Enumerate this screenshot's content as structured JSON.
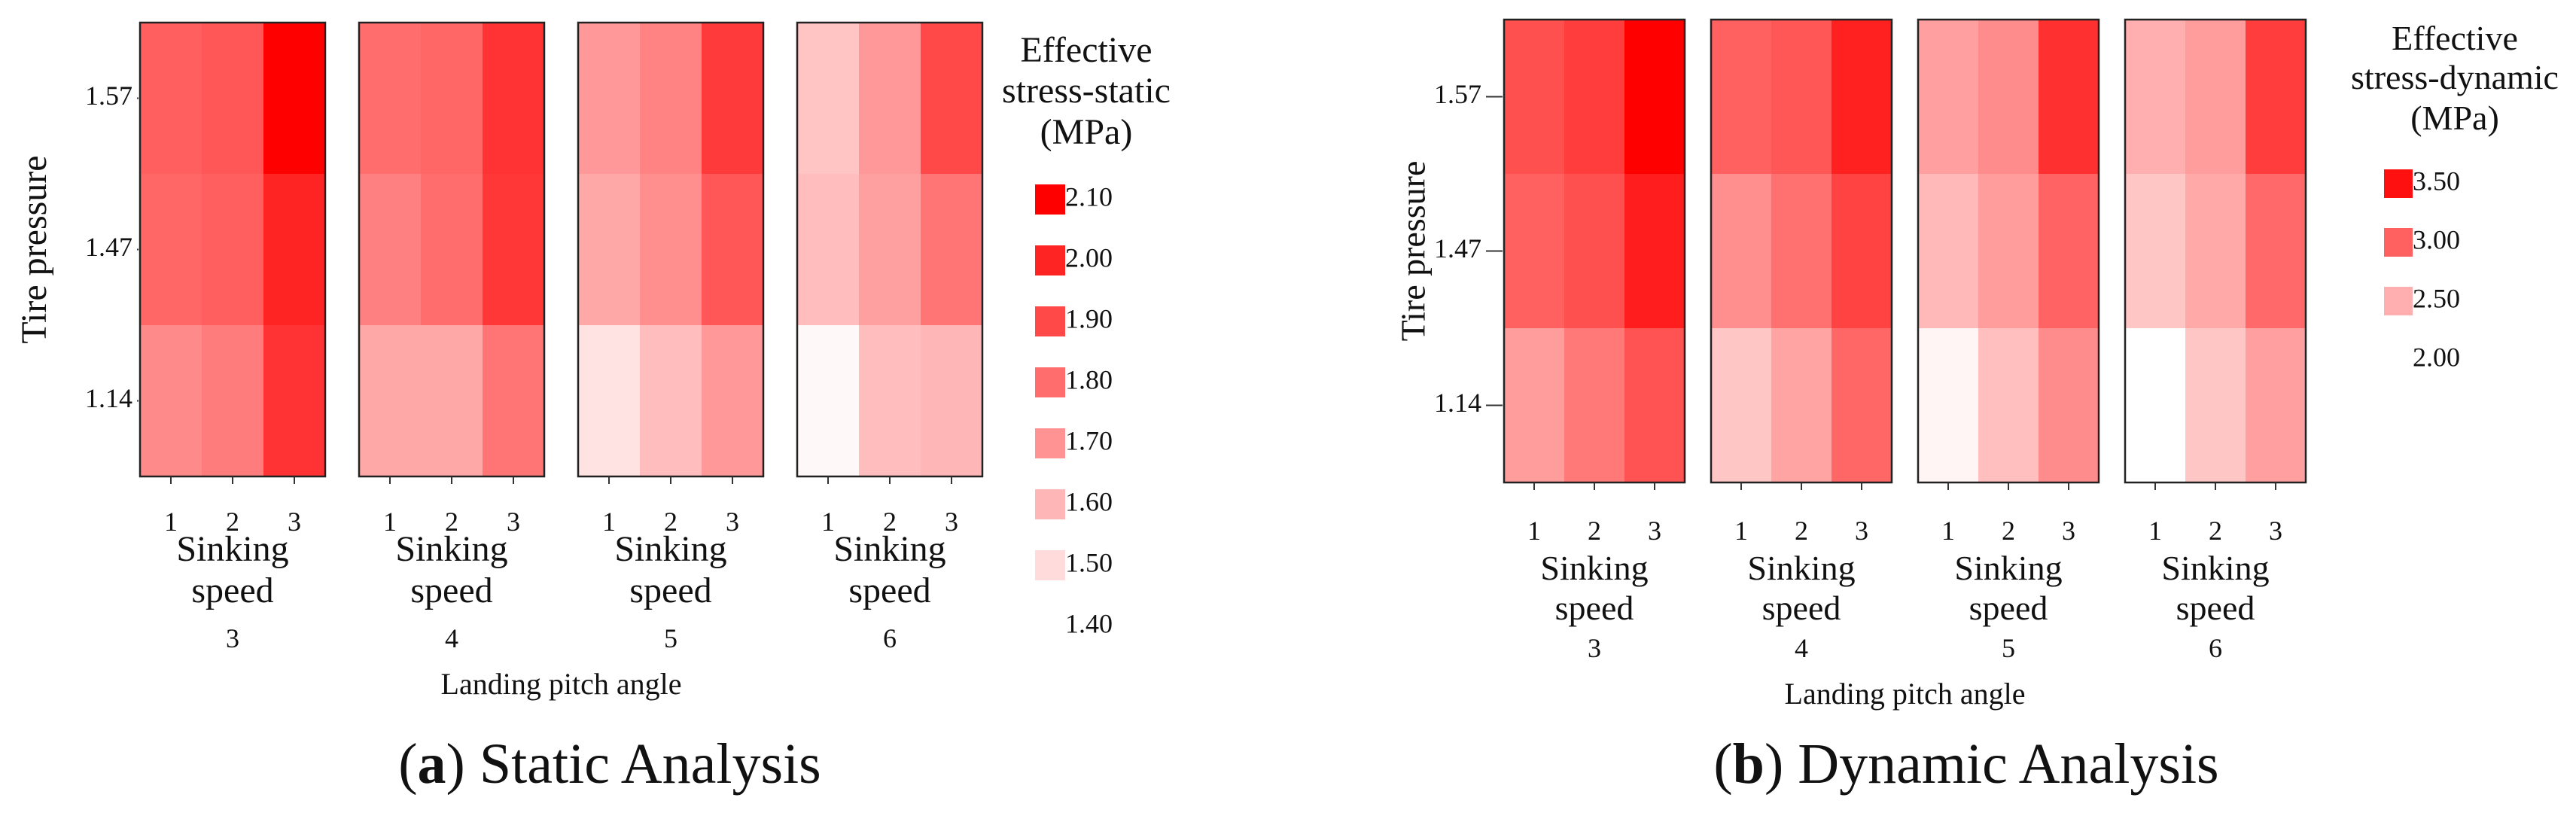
{
  "chart_data": [
    {
      "type": "heatmap",
      "panel_label": "a",
      "caption": "Static Analysis",
      "legend_title_lines": [
        "Effective",
        "stress-static",
        "(MPa)"
      ],
      "legend_entries": [
        {
          "label": "2.10",
          "value": 2.1
        },
        {
          "label": "2.00",
          "value": 2.0
        },
        {
          "label": "1.90",
          "value": 1.9
        },
        {
          "label": "1.80",
          "value": 1.8
        },
        {
          "label": "1.70",
          "value": 1.7
        },
        {
          "label": "1.60",
          "value": 1.6
        },
        {
          "label": "1.50",
          "value": 1.5
        },
        {
          "label": "1.40",
          "value": 1.4
        }
      ],
      "color_range": [
        1.4,
        2.1
      ],
      "ylabel": "Tire pressure",
      "y_ticks": [
        "1.57",
        "1.47",
        "1.14"
      ],
      "x_ticks": [
        "1",
        "2",
        "3"
      ],
      "facet_xlabel_lines": [
        "Sinking",
        "speed"
      ],
      "facet_values": [
        "3",
        "4",
        "5",
        "6"
      ],
      "xlabel": "Landing pitch angle",
      "values": [
        [
          [
            1.84,
            1.86,
            2.1
          ],
          [
            1.82,
            1.84,
            2.0
          ],
          [
            1.72,
            1.76,
            1.96
          ]
        ],
        [
          [
            1.8,
            1.82,
            1.96
          ],
          [
            1.75,
            1.8,
            1.95
          ],
          [
            1.64,
            1.64,
            1.78
          ]
        ],
        [
          [
            1.68,
            1.74,
            1.94
          ],
          [
            1.64,
            1.71,
            1.86
          ],
          [
            1.48,
            1.58,
            1.68
          ]
        ],
        [
          [
            1.56,
            1.68,
            1.9
          ],
          [
            1.58,
            1.66,
            1.78
          ],
          [
            1.42,
            1.58,
            1.6
          ]
        ]
      ]
    },
    {
      "type": "heatmap",
      "panel_label": "b",
      "caption": "Dynamic Analysis",
      "legend_title_lines": [
        "Effective",
        "stress-dynamic",
        "(MPa)"
      ],
      "legend_entries": [
        {
          "label": "3.50",
          "value": 3.5
        },
        {
          "label": "3.00",
          "value": 3.0
        },
        {
          "label": "2.50",
          "value": 2.5
        },
        {
          "label": "2.00",
          "value": 2.0
        }
      ],
      "color_range": [
        2.0,
        3.6
      ],
      "ylabel": "Tire pressure",
      "y_ticks": [
        "1.57",
        "1.47",
        "1.14"
      ],
      "x_ticks": [
        "1",
        "2",
        "3"
      ],
      "facet_xlabel_lines": [
        "Sinking",
        "speed"
      ],
      "facet_values": [
        "3",
        "4",
        "5",
        "6"
      ],
      "xlabel": "Landing pitch angle",
      "values": [
        [
          [
            3.1,
            3.22,
            3.6
          ],
          [
            3.0,
            3.1,
            3.42
          ],
          [
            2.62,
            2.84,
            3.08
          ]
        ],
        [
          [
            3.0,
            3.06,
            3.4
          ],
          [
            2.7,
            2.9,
            3.18
          ],
          [
            2.36,
            2.58,
            2.96
          ]
        ],
        [
          [
            2.6,
            2.72,
            3.3
          ],
          [
            2.44,
            2.62,
            2.98
          ],
          [
            2.06,
            2.4,
            2.72
          ]
        ],
        [
          [
            2.5,
            2.62,
            3.22
          ],
          [
            2.36,
            2.54,
            2.94
          ],
          [
            2.0,
            2.36,
            2.6
          ]
        ]
      ]
    }
  ]
}
